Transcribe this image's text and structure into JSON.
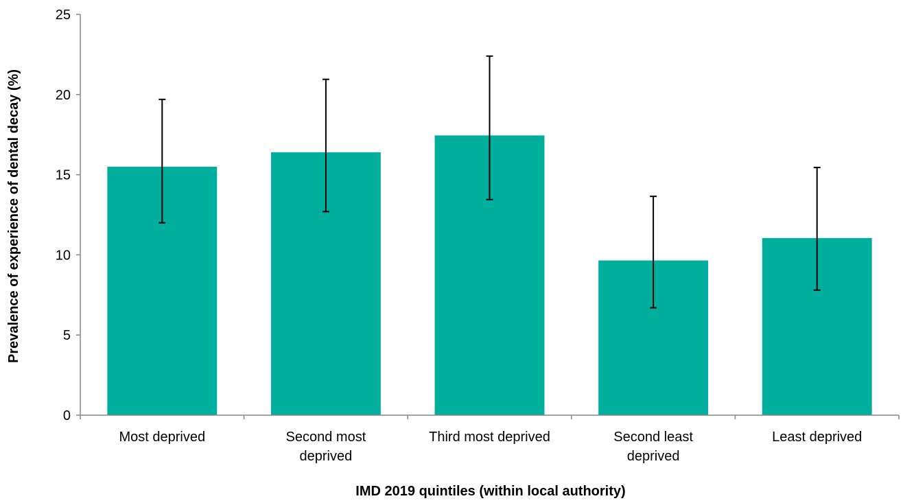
{
  "chart_data": {
    "type": "bar",
    "categories": [
      [
        "Most deprived"
      ],
      [
        "Second most",
        "deprived"
      ],
      [
        "Third most deprived"
      ],
      [
        "Second least",
        "deprived"
      ],
      [
        "Least deprived"
      ]
    ],
    "values": [
      15.5,
      16.4,
      17.45,
      9.65,
      11.05
    ],
    "error_low": [
      12.0,
      12.7,
      13.45,
      6.7,
      7.8
    ],
    "error_high": [
      19.7,
      20.95,
      22.4,
      13.65,
      15.45
    ],
    "xlabel": "IMD 2019 quintiles (within local authority)",
    "ylabel": "Prevalence of experience of dental decay (%)",
    "ylim": [
      0,
      25
    ],
    "yticks": [
      "0",
      "5",
      "10",
      "15",
      "20",
      "25"
    ],
    "grid": false,
    "bar_color": "#00AE9E",
    "error_color": "#000000"
  }
}
